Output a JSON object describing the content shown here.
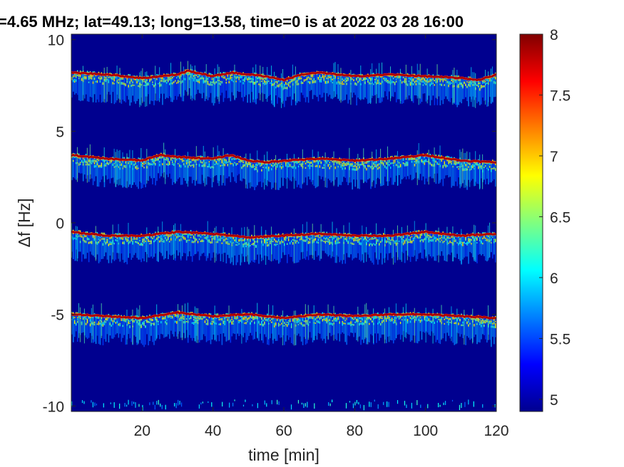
{
  "chart_data": {
    "type": "heatmap",
    "title": "=4.65 MHz;  lat=49.13; long=13.58, time=0 is at 2022 03 28 16:00",
    "xlabel": "time [min]",
    "ylabel": "Δf [Hz]",
    "xlim": [
      0,
      120
    ],
    "ylim": [
      -10.3,
      10.3
    ],
    "x_ticks": [
      20,
      40,
      60,
      80,
      100,
      120
    ],
    "x_tick_labels": [
      "20",
      "40",
      "60",
      "80",
      "100",
      "120"
    ],
    "y_ticks": [
      10,
      5,
      0,
      -5,
      -10
    ],
    "y_tick_labels": [
      "10",
      "5",
      "0",
      "-5",
      "-10"
    ],
    "colorbar": {
      "colormap": "jet",
      "range": [
        4.9,
        8.0
      ],
      "ticks": [
        8,
        7.5,
        7,
        6.5,
        6,
        5.5,
        5
      ],
      "tick_labels": [
        "8",
        "7.5",
        "7",
        "6.5",
        "6",
        "5.5",
        "5"
      ]
    },
    "background_value": 4.95,
    "series": [
      {
        "peak_value": 8.0,
        "x": [
          0,
          10,
          20,
          30,
          33,
          40,
          45,
          50,
          55,
          60,
          65,
          70,
          80,
          90,
          100,
          110,
          115,
          120
        ],
        "y": [
          8.2,
          8.1,
          7.9,
          8.1,
          8.3,
          8.0,
          8.2,
          8.1,
          8.0,
          7.8,
          8.1,
          8.2,
          8.0,
          8.1,
          8.0,
          7.9,
          7.8,
          8.1
        ]
      },
      {
        "peak_value": 8.0,
        "x": [
          0,
          10,
          20,
          25,
          30,
          40,
          45,
          50,
          55,
          60,
          70,
          80,
          90,
          100,
          110,
          120
        ],
        "y": [
          3.7,
          3.5,
          3.4,
          3.7,
          3.6,
          3.5,
          3.7,
          3.4,
          3.3,
          3.4,
          3.5,
          3.4,
          3.5,
          3.7,
          3.4,
          3.3
        ]
      },
      {
        "peak_value": 8.0,
        "x": [
          0,
          10,
          20,
          30,
          40,
          50,
          60,
          70,
          80,
          90,
          100,
          110,
          120
        ],
        "y": [
          -0.5,
          -0.7,
          -0.7,
          -0.5,
          -0.6,
          -0.8,
          -0.7,
          -0.6,
          -0.7,
          -0.7,
          -0.5,
          -0.7,
          -0.6
        ]
      },
      {
        "peak_value": 8.0,
        "x": [
          0,
          10,
          20,
          30,
          40,
          50,
          60,
          70,
          80,
          90,
          100,
          110,
          120
        ],
        "y": [
          -5.0,
          -5.1,
          -5.2,
          -4.9,
          -5.1,
          -5.0,
          -5.2,
          -5.0,
          -5.1,
          -5.0,
          -5.0,
          -5.1,
          -5.2
        ]
      }
    ],
    "grid": false,
    "legend": "none"
  }
}
